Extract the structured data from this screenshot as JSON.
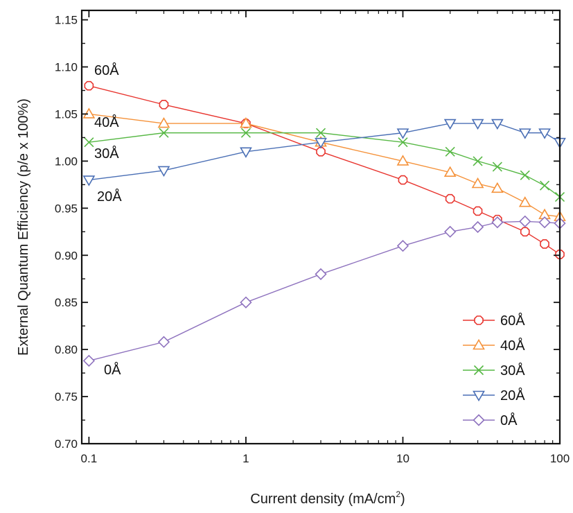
{
  "chart_data": {
    "type": "line",
    "xscale": "log",
    "xlim": [
      0.09,
      100
    ],
    "ylim": [
      0.7,
      1.16
    ],
    "xlabel": "Current density (mA/cm²)",
    "ylabel": "External Quantum Efficiency (p/e x 100%)",
    "xticks": [
      0.1,
      1,
      10,
      100
    ],
    "xtick_labels": [
      "0.1",
      "1",
      "10",
      "100"
    ],
    "yticks": [
      0.7,
      0.75,
      0.8,
      0.85,
      0.9,
      0.95,
      1.0,
      1.05,
      1.1,
      1.15
    ],
    "ytick_labels": [
      "0.70",
      "0.75",
      "0.80",
      "0.85",
      "0.90",
      "0.95",
      "1.00",
      "1.05",
      "1.10",
      "1.15"
    ],
    "grid": false,
    "legend_position": "bottom-right",
    "series": [
      {
        "name": "60Å",
        "color": "#e8352f",
        "marker": "octagon",
        "x": [
          0.1,
          0.3,
          1,
          3,
          10,
          20,
          30,
          40,
          60,
          80,
          100
        ],
        "y": [
          1.08,
          1.06,
          1.04,
          1.01,
          0.98,
          0.96,
          0.947,
          0.938,
          0.925,
          0.912,
          0.901
        ]
      },
      {
        "name": "40Å",
        "color": "#f5923a",
        "marker": "triangle-up",
        "x": [
          0.1,
          0.3,
          1,
          3,
          10,
          20,
          30,
          40,
          60,
          80,
          100
        ],
        "y": [
          1.05,
          1.04,
          1.04,
          1.02,
          1.0,
          0.988,
          0.976,
          0.971,
          0.956,
          0.943,
          0.941
        ]
      },
      {
        "name": "30Å",
        "color": "#57b845",
        "marker": "x",
        "x": [
          0.1,
          0.3,
          1,
          3,
          10,
          20,
          30,
          40,
          60,
          80,
          100
        ],
        "y": [
          1.02,
          1.03,
          1.03,
          1.03,
          1.02,
          1.01,
          1.0,
          0.994,
          0.985,
          0.974,
          0.962
        ]
      },
      {
        "name": "20Å",
        "color": "#4a6fb5",
        "marker": "triangle-down",
        "x": [
          0.1,
          0.3,
          1,
          3,
          10,
          20,
          30,
          40,
          60,
          80,
          100
        ],
        "y": [
          0.98,
          0.99,
          1.01,
          1.02,
          1.03,
          1.04,
          1.04,
          1.04,
          1.03,
          1.03,
          1.02
        ]
      },
      {
        "name": "0Å",
        "color": "#8e72be",
        "marker": "diamond",
        "x": [
          0.1,
          0.3,
          1,
          3,
          10,
          20,
          30,
          40,
          60,
          80,
          100
        ],
        "y": [
          0.788,
          0.808,
          0.85,
          0.88,
          0.91,
          0.925,
          0.93,
          0.935,
          0.936,
          0.935,
          0.934
        ]
      }
    ],
    "annotations": [
      {
        "text": "60Å",
        "series": "60Å"
      },
      {
        "text": "40Å",
        "series": "40Å"
      },
      {
        "text": "30Å",
        "series": "30Å"
      },
      {
        "text": "20Å",
        "series": "20Å"
      },
      {
        "text": "0Å",
        "series": "0Å"
      }
    ]
  }
}
